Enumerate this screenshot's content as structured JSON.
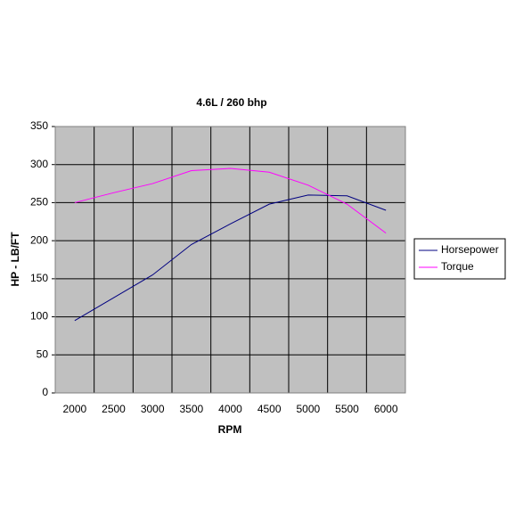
{
  "chart_data": {
    "type": "line",
    "title": "4.6L / 260 bhp",
    "x_label": "RPM",
    "y_label": "HP - LB/FT",
    "categories": [
      "2000",
      "2500",
      "3000",
      "3500",
      "4000",
      "4500",
      "5000",
      "5500",
      "6000"
    ],
    "series": [
      {
        "name": "Horsepower",
        "color": "#000080",
        "values": [
          95,
          125,
          155,
          195,
          222,
          248,
          260,
          259,
          240
        ]
      },
      {
        "name": "Torque",
        "color": "#ff00ff",
        "values": [
          250,
          263,
          275,
          292,
          295,
          290,
          273,
          248,
          210
        ]
      }
    ],
    "ylim": [
      0,
      350
    ],
    "yticks": [
      0,
      50,
      100,
      150,
      200,
      250,
      300,
      350
    ],
    "grid": true,
    "legend": "right"
  }
}
